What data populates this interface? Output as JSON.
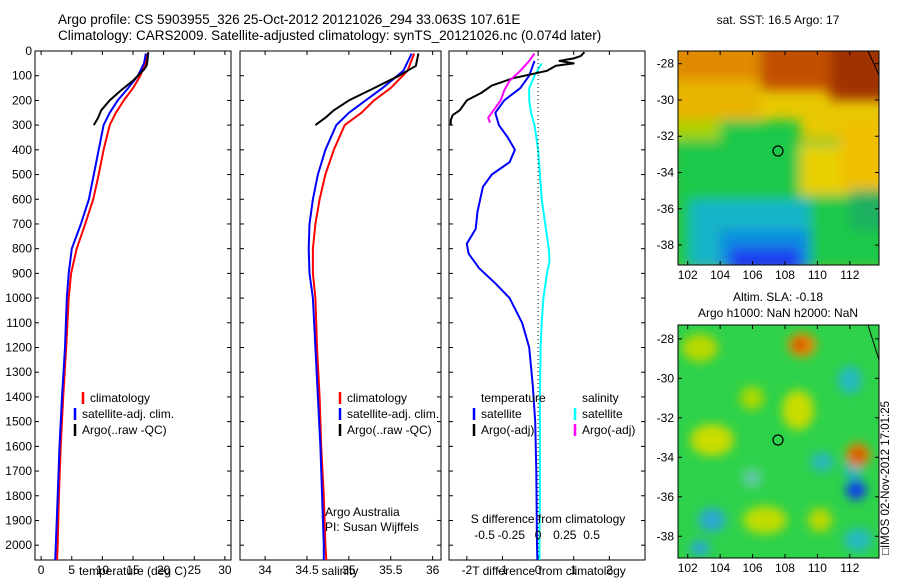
{
  "title_line1": "Argo profile: CS 5903955_326 25-Oct-2012 20121026_294 33.063S 107.61E",
  "title_line2": "Climatology: CARS2009. Satellite-adjusted climatology: synTS_20121026.nc (0.074d later)",
  "depth_ticks": [
    "0",
    "100",
    "200",
    "300",
    "400",
    "500",
    "600",
    "700",
    "800",
    "900",
    "1000",
    "1100",
    "1200",
    "1300",
    "1400",
    "1500",
    "1600",
    "1700",
    "1800",
    "1900",
    "2000"
  ],
  "colors": {
    "climatology": "#ff0000",
    "satellite": "#0000ff",
    "argo": "#000000",
    "sat_salinity": "#00ffff",
    "argo_adj_salinity": "#ff00ff"
  },
  "chart_data": [
    {
      "type": "line",
      "id": "temperature",
      "xlabel": "temperature (deg C)",
      "ylabel": "",
      "xlim": [
        -1,
        31
      ],
      "ylim": [
        2060,
        0
      ],
      "xticks": [
        0,
        5,
        10,
        15,
        20,
        25,
        30
      ],
      "legend": [
        "climatology",
        "satellite-adj. clim.",
        "Argo(..raw -QC)"
      ],
      "series": [
        {
          "name": "climatology",
          "color": "#ff0000",
          "points": [
            [
              17.3,
              10
            ],
            [
              17,
              50
            ],
            [
              16.2,
              100
            ],
            [
              15,
              150
            ],
            [
              13.5,
              200
            ],
            [
              12.2,
              250
            ],
            [
              11.2,
              300
            ],
            [
              10.2,
              400
            ],
            [
              9.4,
              500
            ],
            [
              8.5,
              600
            ],
            [
              7.2,
              700
            ],
            [
              5.8,
              800
            ],
            [
              4.9,
              900
            ],
            [
              4.5,
              1000
            ],
            [
              4.1,
              1200
            ],
            [
              3.6,
              1400
            ],
            [
              3.2,
              1600
            ],
            [
              2.9,
              1800
            ],
            [
              2.7,
              2000
            ],
            [
              2.6,
              2060
            ]
          ]
        },
        {
          "name": "satellite-adj. clim.",
          "color": "#0000ff",
          "points": [
            [
              17.1,
              10
            ],
            [
              16.8,
              50
            ],
            [
              15.8,
              100
            ],
            [
              14.2,
              150
            ],
            [
              12.5,
              200
            ],
            [
              11.2,
              250
            ],
            [
              10.2,
              300
            ],
            [
              9.4,
              400
            ],
            [
              8.6,
              500
            ],
            [
              7.8,
              600
            ],
            [
              6.5,
              700
            ],
            [
              5,
              800
            ],
            [
              4.5,
              900
            ],
            [
              4.2,
              1000
            ],
            [
              3.9,
              1200
            ],
            [
              3.4,
              1400
            ],
            [
              3.0,
              1600
            ],
            [
              2.7,
              1800
            ],
            [
              2.4,
              2000
            ],
            [
              2.3,
              2060
            ]
          ]
        },
        {
          "name": "Argo(..raw -QC)",
          "color": "#000000",
          "points": [
            [
              17.5,
              5
            ],
            [
              17.3,
              50
            ],
            [
              17.2,
              60
            ],
            [
              16.8,
              75
            ],
            [
              15,
              120
            ],
            [
              13,
              160
            ],
            [
              11.2,
              200
            ],
            [
              9.8,
              240
            ],
            [
              9.3,
              270
            ],
            [
              8.6,
              300
            ]
          ]
        }
      ]
    },
    {
      "type": "line",
      "id": "salinity",
      "xlabel": "salinity",
      "ylabel": "",
      "xlim": [
        33.7,
        36.1
      ],
      "ylim": [
        2060,
        0
      ],
      "xticks": [
        34,
        34.5,
        35,
        35.5,
        36
      ],
      "legend": [
        "climatology",
        "satellite-adj. clim.",
        "Argo(..raw -QC)"
      ],
      "credit": [
        "Argo Australia",
        "PI: Susan Wijffels"
      ],
      "series": [
        {
          "name": "climatology",
          "color": "#ff0000",
          "points": [
            [
              35.78,
              10
            ],
            [
              35.7,
              80
            ],
            [
              35.5,
              150
            ],
            [
              35.3,
              200
            ],
            [
              35.15,
              250
            ],
            [
              34.95,
              300
            ],
            [
              34.82,
              400
            ],
            [
              34.72,
              500
            ],
            [
              34.65,
              600
            ],
            [
              34.6,
              700
            ],
            [
              34.57,
              800
            ],
            [
              34.57,
              900
            ],
            [
              34.6,
              1000
            ],
            [
              34.62,
              1200
            ],
            [
              34.65,
              1400
            ],
            [
              34.67,
              1600
            ],
            [
              34.7,
              1800
            ],
            [
              34.72,
              2000
            ],
            [
              34.73,
              2060
            ]
          ]
        },
        {
          "name": "satellite-adj. clim.",
          "color": "#0000ff",
          "points": [
            [
              35.75,
              10
            ],
            [
              35.65,
              80
            ],
            [
              35.4,
              150
            ],
            [
              35.2,
              200
            ],
            [
              35.0,
              250
            ],
            [
              34.85,
              300
            ],
            [
              34.72,
              400
            ],
            [
              34.63,
              500
            ],
            [
              34.57,
              600
            ],
            [
              34.53,
              700
            ],
            [
              34.52,
              800
            ],
            [
              34.53,
              900
            ],
            [
              34.57,
              1000
            ],
            [
              34.6,
              1200
            ],
            [
              34.63,
              1400
            ],
            [
              34.66,
              1600
            ],
            [
              34.68,
              1800
            ],
            [
              34.7,
              2000
            ],
            [
              34.7,
              2060
            ]
          ]
        },
        {
          "name": "Argo(..raw -QC)",
          "color": "#000000",
          "points": [
            [
              35.83,
              10
            ],
            [
              35.8,
              60
            ],
            [
              35.6,
              100
            ],
            [
              35.3,
              150
            ],
            [
              35.0,
              200
            ],
            [
              34.82,
              240
            ],
            [
              34.72,
              270
            ],
            [
              34.6,
              300
            ]
          ]
        }
      ]
    },
    {
      "type": "line",
      "id": "difference",
      "xlabel": "T difference from climatology",
      "ylabel": "",
      "secondary_label": "S difference from climatology",
      "xlim": [
        -2.5,
        3.0
      ],
      "ylim": [
        2060,
        0
      ],
      "xticks": [
        -2,
        -1,
        0,
        1,
        2
      ],
      "top_ticks": [
        {
          "v": -1.5,
          "t": "-0.5"
        },
        {
          "v": -0.75,
          "t": "-0.25"
        },
        {
          "v": 0,
          "t": "0"
        },
        {
          "v": 0.75,
          "t": "0.25"
        },
        {
          "v": 1.5,
          "t": "0.5"
        }
      ],
      "legend_title_left": "temperature",
      "legend_title_right": "salinity",
      "legend_left": [
        "satellite",
        "Argo(-adj)"
      ],
      "legend_right": [
        "satellite",
        "Argo(-adj)"
      ],
      "series": [
        {
          "name": "temperature satellite",
          "color": "#0000ff",
          "points": [
            [
              -0.1,
              40
            ],
            [
              -0.25,
              100
            ],
            [
              -0.5,
              150
            ],
            [
              -0.95,
              200
            ],
            [
              -1.2,
              250
            ],
            [
              -1.1,
              300
            ],
            [
              -0.85,
              350
            ],
            [
              -0.65,
              400
            ],
            [
              -0.8,
              450
            ],
            [
              -1.3,
              500
            ],
            [
              -1.55,
              550
            ],
            [
              -1.7,
              650
            ],
            [
              -1.75,
              720
            ],
            [
              -2.0,
              780
            ],
            [
              -1.95,
              820
            ],
            [
              -1.65,
              880
            ],
            [
              -1.2,
              940
            ],
            [
              -0.8,
              1000
            ],
            [
              -0.45,
              1100
            ],
            [
              -0.25,
              1200
            ],
            [
              -0.15,
              1350
            ],
            [
              -0.08,
              1500
            ],
            [
              -0.05,
              1700
            ],
            [
              -0.03,
              2000
            ],
            [
              -0.02,
              2060
            ]
          ]
        },
        {
          "name": "salinity satellite",
          "color": "#00ffff",
          "points": [
            [
              0.1,
              50
            ],
            [
              -0.1,
              100
            ],
            [
              -0.25,
              150
            ],
            [
              -0.25,
              200
            ],
            [
              -0.2,
              250
            ],
            [
              -0.1,
              300
            ],
            [
              0.0,
              400
            ],
            [
              0.05,
              500
            ],
            [
              0.1,
              600
            ],
            [
              0.2,
              700
            ],
            [
              0.3,
              800
            ],
            [
              0.32,
              850
            ],
            [
              0.25,
              900
            ],
            [
              0.15,
              1000
            ],
            [
              0.1,
              1100
            ],
            [
              0.07,
              1200
            ],
            [
              0.05,
              1400
            ],
            [
              0.05,
              1600
            ],
            [
              0.05,
              1800
            ],
            [
              0.04,
              2000
            ],
            [
              0.04,
              2060
            ]
          ]
        },
        {
          "name": "temperature Argo(-adj)",
          "color": "#000000",
          "points": [
            [
              1.3,
              5
            ],
            [
              1.2,
              20
            ],
            [
              1.0,
              30
            ],
            [
              0.6,
              40
            ],
            [
              1.0,
              50
            ],
            [
              0.5,
              60
            ],
            [
              0.25,
              80
            ],
            [
              -0.7,
              110
            ],
            [
              -1.3,
              140
            ],
            [
              -1.6,
              170
            ],
            [
              -2.0,
              200
            ],
            [
              -2.2,
              240
            ],
            [
              -2.4,
              260
            ],
            [
              -2.45,
              280
            ],
            [
              -2.45,
              300
            ]
          ]
        },
        {
          "name": "salinity Argo(-adj)",
          "color": "#ff00ff",
          "points": [
            [
              -0.1,
              10
            ],
            [
              -0.25,
              40
            ],
            [
              -0.5,
              80
            ],
            [
              -0.8,
              120
            ],
            [
              -0.95,
              160
            ],
            [
              -1.05,
              200
            ],
            [
              -1.25,
              240
            ],
            [
              -1.4,
              270
            ],
            [
              -1.35,
              290
            ]
          ]
        }
      ]
    },
    {
      "type": "heatmap",
      "id": "sst_map",
      "title": "sat. SST: 16.5 Argo: 17",
      "xlim": [
        101.4,
        113.8
      ],
      "ylim": [
        -39.1,
        -27.3
      ],
      "xticks": [
        102,
        104,
        106,
        108,
        110,
        112
      ],
      "yticks": [
        -28,
        -30,
        -32,
        -34,
        -36,
        -38
      ],
      "marker": {
        "lon": 107.61,
        "lat": -33.063
      },
      "note": "colour map of sea surface temperature"
    },
    {
      "type": "heatmap",
      "id": "sla_map",
      "title": "Altim. SLA: -0.18",
      "title2": "Argo h1000: NaN h2000: NaN",
      "xlim": [
        101.4,
        113.8
      ],
      "ylim": [
        -39.1,
        -27.3
      ],
      "xticks": [
        102,
        104,
        106,
        108,
        110,
        112
      ],
      "yticks": [
        -28,
        -30,
        -32,
        -34,
        -36,
        -38
      ],
      "marker": {
        "lon": 107.61,
        "lat": -33.063
      },
      "note": "colour map of sea level anomaly"
    }
  ],
  "stamp": "IMOS 02-Nov-2012 17:01:25"
}
